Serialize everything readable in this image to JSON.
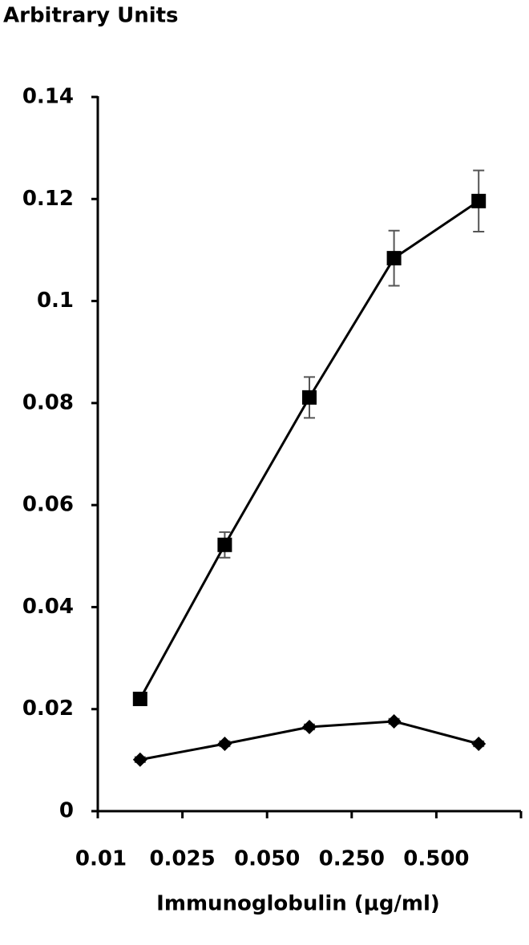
{
  "chart_data": {
    "type": "line",
    "title": "Arbitrary Units",
    "x_label": "Immunoglobulin (μg/ml)",
    "categories": [
      "0.01",
      "0.025",
      "0.050",
      "0.250",
      "0.500"
    ],
    "series": [
      {
        "color": "#000000",
        "marker": "square",
        "values": [
          0.022,
          0.0522,
          0.0811,
          0.1084,
          0.1196
        ],
        "errors": [
          0.001,
          0.0025,
          0.004,
          0.0054,
          0.006
        ]
      },
      {
        "color": "#000000",
        "marker": "diamond",
        "values": [
          0.0101,
          0.0132,
          0.0165,
          0.0176,
          0.0132
        ],
        "errors": [
          0.0005,
          0.0005,
          0.0005,
          0.0005,
          0.0005
        ]
      }
    ],
    "ylim": [
      0,
      0.14
    ],
    "yticks": [
      0,
      0.02,
      0.04,
      0.06,
      0.08,
      0.1,
      0.12,
      0.14
    ],
    "grid": false
  }
}
